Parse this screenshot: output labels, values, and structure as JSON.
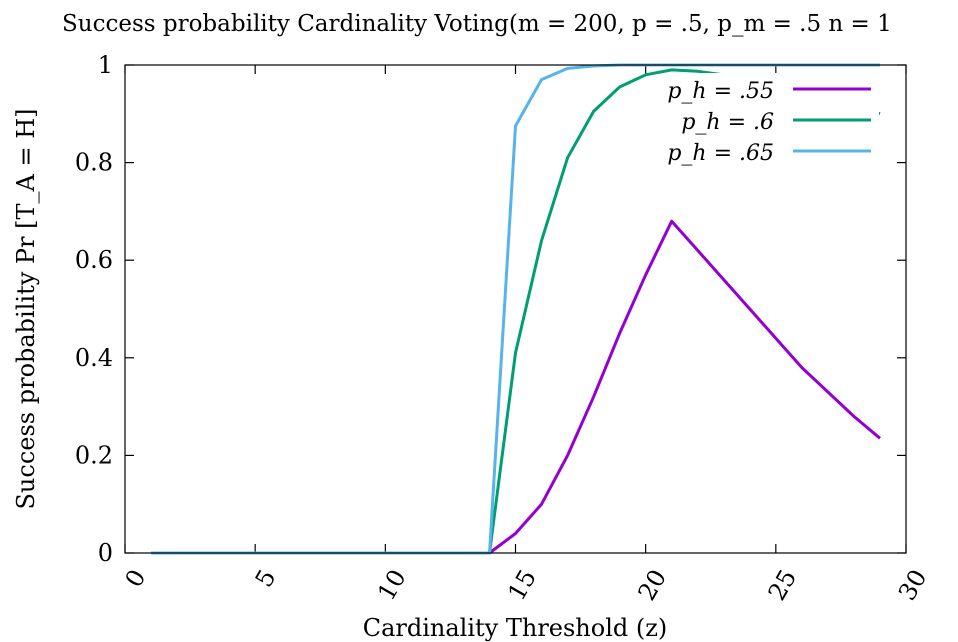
{
  "chart_data": {
    "type": "line",
    "title": "Success probability Cardinality Voting(m = 200, p = .5, p_m = .5 n = 1",
    "xlabel": "Cardinality Threshold (z)",
    "ylabel": "Success probability Pr [T_A = H]",
    "xlim": [
      0,
      30
    ],
    "ylim": [
      0,
      1
    ],
    "xticks": [
      "0",
      "5",
      "10",
      "15",
      "20",
      "25",
      "30"
    ],
    "yticks": [
      "0",
      "0.2",
      "0.4",
      "0.6",
      "0.8",
      "1"
    ],
    "grid": false,
    "legend_position": "top-right",
    "series": [
      {
        "name": "p_h = .55",
        "color": "#9400d3",
        "x": [
          1,
          2,
          3,
          4,
          5,
          6,
          7,
          8,
          9,
          10,
          11,
          12,
          13,
          14,
          15,
          16,
          17,
          18,
          19,
          20,
          21,
          22,
          23,
          24,
          25,
          26,
          27,
          28,
          29
        ],
        "y": [
          0,
          0,
          0,
          0,
          0,
          0,
          0,
          0,
          0,
          0,
          0,
          0,
          0,
          0,
          0.04,
          0.1,
          0.2,
          0.32,
          0.45,
          0.57,
          0.68,
          0.62,
          0.56,
          0.5,
          0.44,
          0.38,
          0.33,
          0.28,
          0.235
        ]
      },
      {
        "name": "p_h = .6",
        "color": "#009e73",
        "x": [
          1,
          2,
          3,
          4,
          5,
          6,
          7,
          8,
          9,
          10,
          11,
          12,
          13,
          14,
          15,
          16,
          17,
          18,
          19,
          20,
          21,
          22,
          23,
          24,
          25,
          26,
          27,
          28,
          29
        ],
        "y": [
          0,
          0,
          0,
          0,
          0,
          0,
          0,
          0,
          0,
          0,
          0,
          0,
          0,
          0,
          0.41,
          0.64,
          0.81,
          0.905,
          0.955,
          0.98,
          0.99,
          0.987,
          0.98,
          0.97,
          0.96,
          0.95,
          0.94,
          0.92,
          0.9
        ]
      },
      {
        "name": "p_h = .65",
        "color": "#56b4e9",
        "x": [
          1,
          2,
          3,
          4,
          5,
          6,
          7,
          8,
          9,
          10,
          11,
          12,
          13,
          14,
          15,
          16,
          17,
          18,
          19,
          20,
          21,
          22,
          23,
          24,
          25,
          26,
          27,
          28,
          29
        ],
        "y": [
          0,
          0,
          0,
          0,
          0,
          0,
          0,
          0,
          0,
          0,
          0,
          0,
          0,
          0,
          0.875,
          0.97,
          0.993,
          0.998,
          1,
          1,
          1,
          1,
          1,
          1,
          1,
          1,
          1,
          1,
          1
        ]
      }
    ]
  }
}
